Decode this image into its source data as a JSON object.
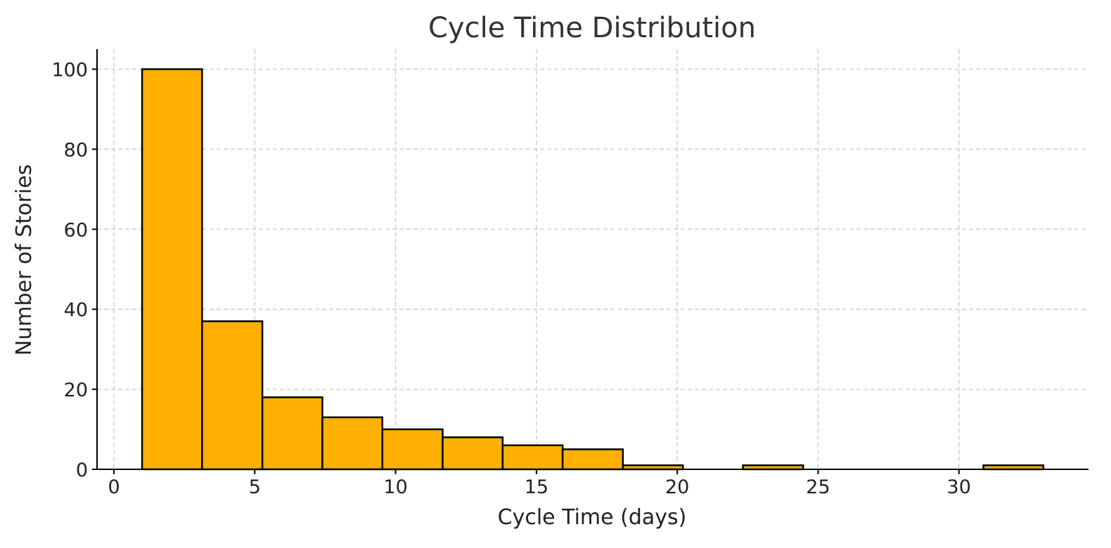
{
  "chart_data": {
    "type": "bar",
    "title": "Cycle Time Distribution",
    "xlabel": "Cycle Time (days)",
    "ylabel": "Number of Stories",
    "xlim": [
      -0.6,
      34.6
    ],
    "ylim": [
      0,
      105
    ],
    "xticks": [
      0,
      5,
      10,
      15,
      20,
      25,
      30
    ],
    "yticks": [
      0,
      20,
      40,
      60,
      80,
      100
    ],
    "bin_edges": [
      1.0,
      3.13,
      5.27,
      7.4,
      9.53,
      11.67,
      13.8,
      15.93,
      18.07,
      20.2,
      22.33,
      24.47,
      26.6,
      28.73,
      30.87,
      33.0
    ],
    "values": [
      100,
      37,
      18,
      13,
      10,
      8,
      6,
      5,
      1,
      0,
      1,
      0,
      0,
      0,
      1
    ],
    "bar_color": "#ffb000",
    "edge_color": "#000000",
    "grid": true,
    "legend": false
  }
}
